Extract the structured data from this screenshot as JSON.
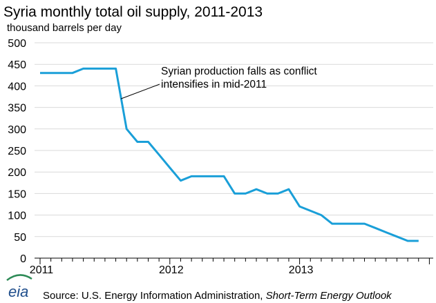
{
  "chart_data": {
    "type": "line",
    "title": "Syria monthly  total oil supply,  2011-2013",
    "subtitle": "thousand  barrels per day",
    "xlabel": "",
    "ylabel": "",
    "ylim": [
      0,
      500
    ],
    "yticks": [
      0,
      50,
      100,
      150,
      200,
      250,
      300,
      350,
      400,
      450,
      500
    ],
    "xticks": [
      "2011",
      "2012",
      "2013"
    ],
    "grid": "horizontal",
    "series": [
      {
        "color": "#1a9fd8",
        "x": [
          "2011-01",
          "2011-02",
          "2011-03",
          "2011-04",
          "2011-05",
          "2011-06",
          "2011-07",
          "2011-08",
          "2011-09",
          "2011-10",
          "2011-11",
          "2011-12",
          "2012-01",
          "2012-02",
          "2012-03",
          "2012-04",
          "2012-05",
          "2012-06",
          "2012-07",
          "2012-08",
          "2012-09",
          "2012-10",
          "2012-11",
          "2012-12",
          "2013-01",
          "2013-02",
          "2013-03",
          "2013-04",
          "2013-05",
          "2013-06",
          "2013-07",
          "2013-08",
          "2013-09",
          "2013-10",
          "2013-11",
          "2013-12"
        ],
        "values": [
          430,
          430,
          430,
          430,
          440,
          440,
          440,
          440,
          300,
          270,
          270,
          240,
          210,
          180,
          190,
          190,
          190,
          190,
          150,
          150,
          160,
          150,
          150,
          160,
          120,
          110,
          100,
          80,
          80,
          80,
          80,
          70,
          60,
          50,
          40,
          40
        ]
      }
    ],
    "annotations": [
      {
        "text_lines": [
          "Syrian production falls  as conflict",
          "intensifies in mid-2011"
        ],
        "points_to": "2011-08"
      }
    ],
    "source": {
      "logo_text": "eia",
      "prefix": "Source: U.S. Energy Information Administration, ",
      "italic": "Short-Term Energy Outlook"
    }
  }
}
